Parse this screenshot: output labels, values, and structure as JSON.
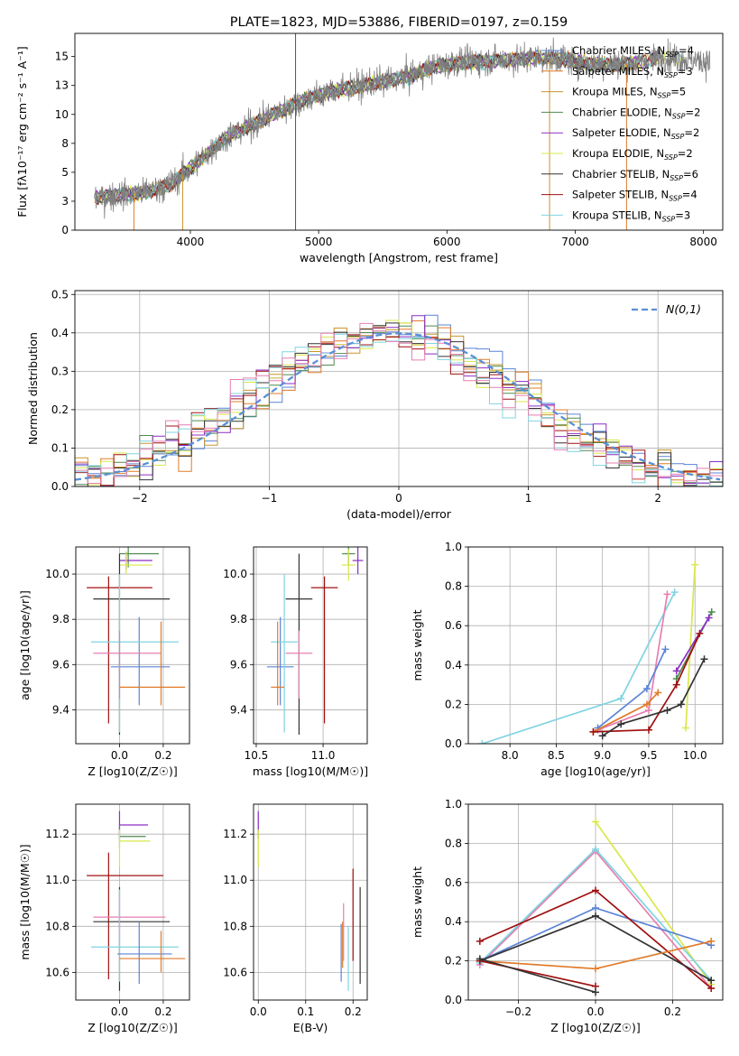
{
  "chart_data": [
    {
      "id": "spectrum",
      "type": "line",
      "title": "PLATE=1823, MJD=53886, FIBERID=0197, z=0.159",
      "xlabel": "wavelength [Angstrom, rest frame]",
      "ylabel": "Flux [fλ10⁻¹⁷ erg cm⁻² s⁻¹ A⁻¹]",
      "xlim": [
        3100,
        8150
      ],
      "ylim": [
        0,
        17
      ],
      "xticks": [
        4000,
        5000,
        6000,
        7000,
        8000
      ],
      "yticks": [
        0.0,
        2.5,
        5.0,
        7.5,
        10.0,
        12.5,
        15.0
      ],
      "grid": false,
      "legend_position": "top-right",
      "observed_series": "gray",
      "legend": [
        {
          "name": "Chabrier MILES, N_SSP=4",
          "color": "#5b84d6"
        },
        {
          "name": "Salpeter MILES, N_SSP=3",
          "color": "#e07b2a"
        },
        {
          "name": "Kroupa MILES, N_SSP=5",
          "color": "#c8952a"
        },
        {
          "name": "Chabrier ELODIE, N_SSP=2",
          "color": "#4f8a4f"
        },
        {
          "name": "Salpeter ELODIE, N_SSP=2",
          "color": "#8c2fc4"
        },
        {
          "name": "Kroupa ELODIE, N_SSP=2",
          "color": "#d8e84a"
        },
        {
          "name": "Chabrier STELIB, N_SSP=6",
          "color": "#333333"
        },
        {
          "name": "Salpeter STELIB, N_SSP=4",
          "color": "#a01010"
        },
        {
          "name": "Kroupa STELIB, N_SSP=3",
          "color": "#7fd4e0"
        }
      ],
      "continuum_points": {
        "x": [
          3250,
          3400,
          3550,
          3700,
          3850,
          4000,
          4150,
          4300,
          4500,
          4700,
          4900,
          5100,
          5300,
          5500,
          5700,
          5900,
          6100,
          6300,
          6500,
          6700,
          6900,
          7100,
          7300,
          7500,
          7700,
          7900,
          8050
        ],
        "y": [
          2.8,
          3.0,
          3.1,
          3.4,
          4.0,
          5.3,
          6.8,
          8.2,
          9.2,
          10.3,
          11.3,
          12.0,
          12.4,
          12.8,
          13.3,
          14.1,
          14.5,
          14.6,
          14.7,
          14.9,
          14.8,
          14.4,
          14.3,
          14.5,
          15.0,
          14.7,
          14.5
        ]
      }
    },
    {
      "id": "residuals",
      "type": "line",
      "xlabel": "(data-model)/error",
      "ylabel": "Normed distribution",
      "xlim": [
        -2.5,
        2.5
      ],
      "ylim": [
        0,
        0.51
      ],
      "xticks": [
        -2,
        -1,
        0,
        1,
        2
      ],
      "yticks": [
        0.0,
        0.1,
        0.2,
        0.3,
        0.4,
        0.5
      ],
      "grid": true,
      "legend_position": "top-right",
      "legend": [
        {
          "name": "N(0,1)",
          "style": "dashed",
          "color": "#5b8fd6"
        }
      ],
      "histogram_colors": [
        "#5b84d6",
        "#e07b2a",
        "#c8952a",
        "#4f8a4f",
        "#8c2fc4",
        "#d8e84a",
        "#333333",
        "#a01010",
        "#7fd4e0",
        "#e67fb0"
      ],
      "histogram_bin_width": 0.1
    },
    {
      "id": "age_vs_Z",
      "type": "scatter",
      "xlabel": "Z [log10(Z/Z☉)]",
      "ylabel": "age  [log10(age/yr)]",
      "xlim": [
        -0.2,
        0.32
      ],
      "ylim": [
        9.25,
        10.12
      ],
      "xticks": [
        0.0,
        0.2
      ],
      "yticks": [
        9.4,
        9.6,
        9.8,
        10.0
      ],
      "grid": true,
      "errorbars": [
        {
          "x": 0.04,
          "y": 10.09,
          "xerr": [
            0.04,
            0.14
          ],
          "yerr": [
            0.06,
            0.06
          ],
          "color": "#4f8a4f"
        },
        {
          "x": 0.03,
          "y": 10.06,
          "xerr": [
            0.03,
            0.12
          ],
          "yerr": [
            0.04,
            0.04
          ],
          "color": "#8c2fc4"
        },
        {
          "x": 0.03,
          "y": 10.04,
          "xerr": [
            0.03,
            0.12
          ],
          "yerr": [
            0.04,
            0.06
          ],
          "color": "#d8e84a"
        },
        {
          "x": -0.05,
          "y": 9.94,
          "xerr": [
            0.1,
            0.2
          ],
          "yerr": [
            0.6,
            0.05
          ],
          "color": "#a01010"
        },
        {
          "x": 0.0,
          "y": 9.89,
          "xerr": [
            0.12,
            0.23
          ],
          "yerr": [
            0.6,
            0.2
          ],
          "color": "#333333"
        },
        {
          "x": 0.09,
          "y": 9.59,
          "xerr": [
            0.13,
            0.14
          ],
          "yerr": [
            0.17,
            0.22
          ],
          "color": "#5b84d6"
        },
        {
          "x": 0.0,
          "y": 9.7,
          "xerr": [
            0.13,
            0.27
          ],
          "yerr": [
            0.4,
            0.3
          ],
          "color": "#7fd4e0"
        },
        {
          "x": 0.0,
          "y": 9.65,
          "xerr": [
            0.12,
            0.19
          ],
          "yerr": [
            0.2,
            0.1
          ],
          "color": "#e67fb0"
        },
        {
          "x": 0.19,
          "y": 9.5,
          "xerr": [
            0.19,
            0.11
          ],
          "yerr": [
            0.08,
            0.29
          ],
          "color": "#e07b2a"
        }
      ]
    },
    {
      "id": "age_vs_mass",
      "type": "scatter",
      "xlabel": "mass [log10(M/M☉)]",
      "ylabel": "",
      "xlim": [
        10.48,
        11.33
      ],
      "ylim": [
        9.25,
        10.12
      ],
      "xticks": [
        10.5,
        11.0
      ],
      "yticks": [
        9.4,
        9.6,
        9.8,
        10.0
      ],
      "grid": true,
      "errorbars": [
        {
          "x": 11.19,
          "y": 10.09,
          "xerr": [
            0.05,
            0.05
          ],
          "yerr": [
            0.05,
            0.05
          ],
          "color": "#4f8a4f"
        },
        {
          "x": 11.26,
          "y": 10.06,
          "xerr": [
            0.04,
            0.04
          ],
          "yerr": [
            0.06,
            0.06
          ],
          "color": "#8c2fc4"
        },
        {
          "x": 11.19,
          "y": 10.04,
          "xerr": [
            0.05,
            0.05
          ],
          "yerr": [
            0.07,
            0.07
          ],
          "color": "#d8e84a"
        },
        {
          "x": 11.01,
          "y": 9.94,
          "xerr": [
            0.1,
            0.1
          ],
          "yerr": [
            0.6,
            0.05
          ],
          "color": "#a01010"
        },
        {
          "x": 10.82,
          "y": 9.89,
          "xerr": [
            0.1,
            0.1
          ],
          "yerr": [
            0.6,
            0.2
          ],
          "color": "#333333"
        },
        {
          "x": 10.68,
          "y": 9.59,
          "xerr": [
            0.1,
            0.1
          ],
          "yerr": [
            0.17,
            0.22
          ],
          "color": "#5b84d6"
        },
        {
          "x": 10.71,
          "y": 9.7,
          "xerr": [
            0.1,
            0.1
          ],
          "yerr": [
            0.4,
            0.3
          ],
          "color": "#7fd4e0"
        },
        {
          "x": 10.82,
          "y": 9.65,
          "xerr": [
            0.1,
            0.1
          ],
          "yerr": [
            0.2,
            0.1
          ],
          "color": "#e67fb0"
        },
        {
          "x": 10.66,
          "y": 9.5,
          "xerr": [
            0.05,
            0.05
          ],
          "yerr": [
            0.08,
            0.29
          ],
          "color": "#e07b2a"
        }
      ]
    },
    {
      "id": "mass_weight_vs_age",
      "type": "line",
      "xlabel": "age  [log10(age/yr)]",
      "ylabel": "mass weight",
      "xlim": [
        7.55,
        10.3
      ],
      "ylim": [
        0,
        1.0
      ],
      "xticks": [
        8.0,
        8.5,
        9.0,
        9.5,
        10.0
      ],
      "yticks": [
        0.0,
        0.2,
        0.4,
        0.6,
        0.8,
        1.0
      ],
      "grid": true,
      "series": [
        {
          "color": "#7fd4e0",
          "x": [
            7.7,
            9.2,
            9.78
          ],
          "y": [
            0.0,
            0.23,
            0.77
          ]
        },
        {
          "color": "#e67fb0",
          "x": [
            8.95,
            9.5,
            9.7
          ],
          "y": [
            0.07,
            0.17,
            0.76
          ]
        },
        {
          "color": "#5b84d6",
          "x": [
            8.95,
            9.48,
            9.68
          ],
          "y": [
            0.08,
            0.28,
            0.48
          ]
        },
        {
          "color": "#e07b2a",
          "x": [
            8.9,
            9.48,
            9.6
          ],
          "y": [
            0.06,
            0.2,
            0.26
          ]
        },
        {
          "color": "#d8e84a",
          "x": [
            9.9,
            10.0
          ],
          "y": [
            0.08,
            0.91
          ]
        },
        {
          "color": "#4f8a4f",
          "x": [
            9.8,
            10.18
          ],
          "y": [
            0.33,
            0.67
          ]
        },
        {
          "color": "#8c2fc4",
          "x": [
            9.8,
            10.15
          ],
          "y": [
            0.37,
            0.64
          ]
        },
        {
          "color": "#a01010",
          "x": [
            8.9,
            9.5,
            9.8,
            10.05
          ],
          "y": [
            0.06,
            0.07,
            0.3,
            0.56
          ]
        },
        {
          "color": "#333333",
          "x": [
            9.0,
            9.2,
            9.7,
            9.85,
            10.1
          ],
          "y": [
            0.04,
            0.1,
            0.17,
            0.2,
            0.43
          ]
        }
      ]
    },
    {
      "id": "mass_vs_Z",
      "type": "scatter",
      "xlabel": "Z [log10(Z/Z☉)]",
      "ylabel": "mass [log10(M/M☉)]",
      "xlim": [
        -0.2,
        0.32
      ],
      "ylim": [
        10.48,
        11.33
      ],
      "xticks": [
        0.0,
        0.2
      ],
      "yticks": [
        10.6,
        10.8,
        11.0,
        11.2
      ],
      "grid": true,
      "errorbars": [
        {
          "x": 0.0,
          "y": 11.24,
          "xerr": [
            0.0,
            0.13
          ],
          "yerr": [
            0.06,
            0.06
          ],
          "color": "#8c2fc4"
        },
        {
          "x": 0.0,
          "y": 11.19,
          "xerr": [
            0.0,
            0.12
          ],
          "yerr": [
            0.05,
            0.05
          ],
          "color": "#4f8a4f"
        },
        {
          "x": 0.0,
          "y": 11.17,
          "xerr": [
            0.0,
            0.14
          ],
          "yerr": [
            0.11,
            0.05
          ],
          "color": "#d8e84a"
        },
        {
          "x": -0.05,
          "y": 11.02,
          "xerr": [
            0.1,
            0.25
          ],
          "yerr": [
            0.45,
            0.1
          ],
          "color": "#a01010"
        },
        {
          "x": 0.0,
          "y": 10.82,
          "xerr": [
            0.12,
            0.23
          ],
          "yerr": [
            0.3,
            0.15
          ],
          "color": "#333333"
        },
        {
          "x": 0.0,
          "y": 10.84,
          "xerr": [
            0.12,
            0.21
          ],
          "yerr": [
            0.1,
            0.1
          ],
          "color": "#e67fb0"
        },
        {
          "x": 0.0,
          "y": 10.71,
          "xerr": [
            0.13,
            0.27
          ],
          "yerr": [
            0.15,
            0.25
          ],
          "color": "#7fd4e0"
        },
        {
          "x": 0.09,
          "y": 10.68,
          "xerr": [
            0.1,
            0.15
          ],
          "yerr": [
            0.13,
            0.14
          ],
          "color": "#5b84d6"
        },
        {
          "x": 0.19,
          "y": 10.66,
          "xerr": [
            0.19,
            0.11
          ],
          "yerr": [
            0.06,
            0.12
          ],
          "color": "#e07b2a"
        }
      ]
    },
    {
      "id": "mass_vs_ebv",
      "type": "scatter",
      "xlabel": "E(B-V)",
      "ylabel": "",
      "xlim": [
        -0.01,
        0.23
      ],
      "ylim": [
        10.48,
        11.33
      ],
      "xticks": [
        0.0,
        0.1,
        0.2
      ],
      "yticks": [
        10.6,
        10.8,
        11.0,
        11.2
      ],
      "grid": true,
      "errorbars": [
        {
          "x": 0.0,
          "y": 11.24,
          "xerr": [
            0,
            0
          ],
          "yerr": [
            0.06,
            0.06
          ],
          "color": "#8c2fc4"
        },
        {
          "x": 0.0,
          "y": 11.17,
          "xerr": [
            0,
            0
          ],
          "yerr": [
            0.11,
            0.05
          ],
          "color": "#d8e84a"
        },
        {
          "x": 0.175,
          "y": 10.71,
          "xerr": [
            0,
            0
          ],
          "yerr": [
            0.15,
            0.1
          ],
          "color": "#5b84d6"
        },
        {
          "x": 0.178,
          "y": 10.72,
          "xerr": [
            0,
            0
          ],
          "yerr": [
            0.1,
            0.1
          ],
          "color": "#e07b2a"
        },
        {
          "x": 0.18,
          "y": 10.75,
          "xerr": [
            0,
            0
          ],
          "yerr": [
            0.1,
            0.15
          ],
          "color": "#e67fb0"
        },
        {
          "x": 0.19,
          "y": 10.7,
          "xerr": [
            0,
            0
          ],
          "yerr": [
            0.18,
            0.1
          ],
          "color": "#7fd4e0"
        },
        {
          "x": 0.2,
          "y": 10.85,
          "xerr": [
            0,
            0
          ],
          "yerr": [
            0.2,
            0.2
          ],
          "color": "#a01010"
        },
        {
          "x": 0.215,
          "y": 10.75,
          "xerr": [
            0,
            0
          ],
          "yerr": [
            0.2,
            0.22
          ],
          "color": "#333333"
        }
      ]
    },
    {
      "id": "mass_weight_vs_Z",
      "type": "line",
      "xlabel": "Z [log10(Z/Z☉)]",
      "ylabel": "mass weight",
      "xlim": [
        -0.33,
        0.33
      ],
      "ylim": [
        0,
        1.0
      ],
      "xticks": [
        -0.2,
        0.0,
        0.2
      ],
      "yticks": [
        0.0,
        0.2,
        0.4,
        0.6,
        0.8,
        1.0
      ],
      "grid": true,
      "series": [
        {
          "color": "#d8e84a",
          "x": [
            0.0,
            0.3
          ],
          "y": [
            0.91,
            0.08
          ]
        },
        {
          "color": "#e67fb0",
          "x": [
            -0.3,
            0.0,
            0.3
          ],
          "y": [
            0.18,
            0.76,
            0.06
          ]
        },
        {
          "color": "#7fd4e0",
          "x": [
            -0.3,
            0.0,
            0.3
          ],
          "y": [
            0.19,
            0.77,
            0.1
          ]
        },
        {
          "color": "#5b84d6",
          "x": [
            -0.3,
            0.0,
            0.3
          ],
          "y": [
            0.2,
            0.47,
            0.28
          ]
        },
        {
          "color": "#a01010",
          "x": [
            -0.3,
            0.0,
            0.3
          ],
          "y": [
            0.3,
            0.56,
            0.06
          ]
        },
        {
          "color": "#333333",
          "x": [
            -0.3,
            0.0,
            0.3
          ],
          "y": [
            0.2,
            0.43,
            0.1
          ]
        },
        {
          "color": "#e07b2a",
          "x": [
            -0.3,
            0.0,
            0.3
          ],
          "y": [
            0.2,
            0.16,
            0.3
          ]
        },
        {
          "color": "#a01010",
          "x": [
            -0.3,
            0.0
          ],
          "y": [
            0.2,
            0.07
          ]
        },
        {
          "color": "#333333",
          "x": [
            -0.3,
            0.0
          ],
          "y": [
            0.21,
            0.04
          ]
        }
      ]
    }
  ]
}
